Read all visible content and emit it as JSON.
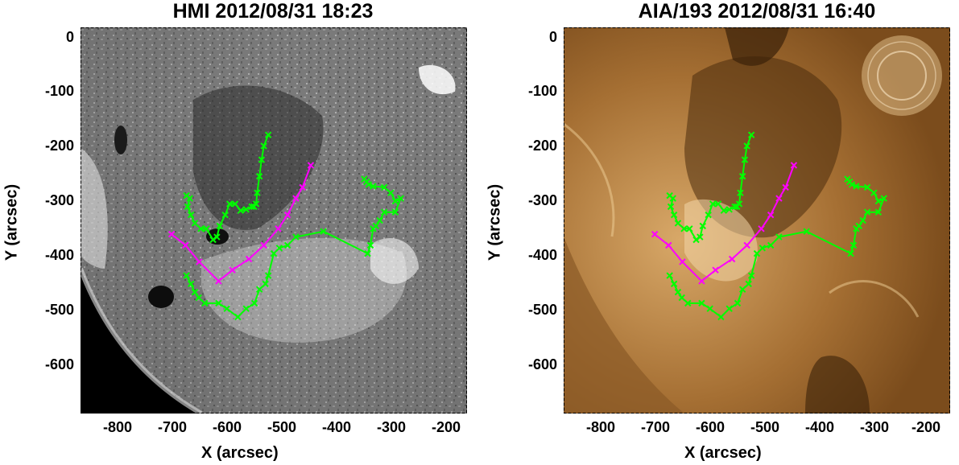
{
  "panels": [
    {
      "id": "hmi",
      "title": "HMI 2012/08/31 18:23",
      "xlabel": "X (arcsec)",
      "ylabel": "Y (arcsec)",
      "colors": {
        "bg": "#808080",
        "limb": "#000000",
        "plage": "#f2f2f2",
        "spot": "#111111"
      }
    },
    {
      "id": "aia",
      "title": "AIA/193 2012/08/31 16:40",
      "xlabel": "X (arcsec)",
      "ylabel": "Y (arcsec)",
      "colors": {
        "bg": "#b07a3a",
        "limb": "#6b4015",
        "bright": "#f3d6a8",
        "dark": "#3a2108"
      }
    }
  ],
  "axis": {
    "x_ticks": [
      "-800",
      "-700",
      "-600",
      "-500",
      "-400",
      "-300",
      "-200"
    ],
    "y_ticks": [
      "0",
      "-100",
      "-200",
      "-300",
      "-400",
      "-500",
      "-600"
    ]
  },
  "chart_data": {
    "type": "line",
    "xlim": [
      -880,
      -180
    ],
    "ylim": [
      -690,
      10
    ],
    "series": [
      {
        "color": "#00ff00",
        "x": [
          -540,
          -548,
          -552,
          -556,
          -560,
          -562,
          -566,
          -570,
          -580,
          -590,
          -600,
          -610,
          -618,
          -628,
          -633,
          -640,
          -652,
          -662,
          -673,
          -680,
          -686,
          -682,
          -688
        ],
        "y": [
          -185,
          -205,
          -230,
          -260,
          -290,
          -310,
          -315,
          -315,
          -320,
          -322,
          -310,
          -310,
          -330,
          -350,
          -370,
          -375,
          -355,
          -355,
          -345,
          -330,
          -315,
          -300,
          -295
        ]
      },
      {
        "color": "#00ff00",
        "x": [
          -688,
          -680,
          -673,
          -666,
          -655,
          -630,
          -615,
          -595,
          -580,
          -565,
          -556,
          -545,
          -540,
          -530,
          -520,
          -505,
          -490,
          -440,
          -360,
          -355,
          -350,
          -345,
          -338,
          -330,
          -310,
          -300,
          -310,
          -318,
          -330,
          -350,
          -358,
          -362,
          -366
        ],
        "y": [
          -440,
          -455,
          -470,
          -480,
          -490,
          -490,
          -500,
          -515,
          -500,
          -490,
          -465,
          -455,
          -440,
          -400,
          -390,
          -385,
          -370,
          -360,
          -400,
          -385,
          -355,
          -350,
          -340,
          -325,
          -325,
          -300,
          -305,
          -290,
          -280,
          -278,
          -275,
          -270,
          -265
        ]
      },
      {
        "color": "#ff00ff",
        "x": [
          -715,
          -690,
          -665,
          -630,
          -605,
          -575,
          -548,
          -522,
          -505,
          -490,
          -478,
          -463
        ],
        "y": [
          -365,
          -385,
          -415,
          -450,
          -430,
          -410,
          -385,
          -355,
          -330,
          -300,
          -280,
          -240
        ]
      }
    ]
  }
}
